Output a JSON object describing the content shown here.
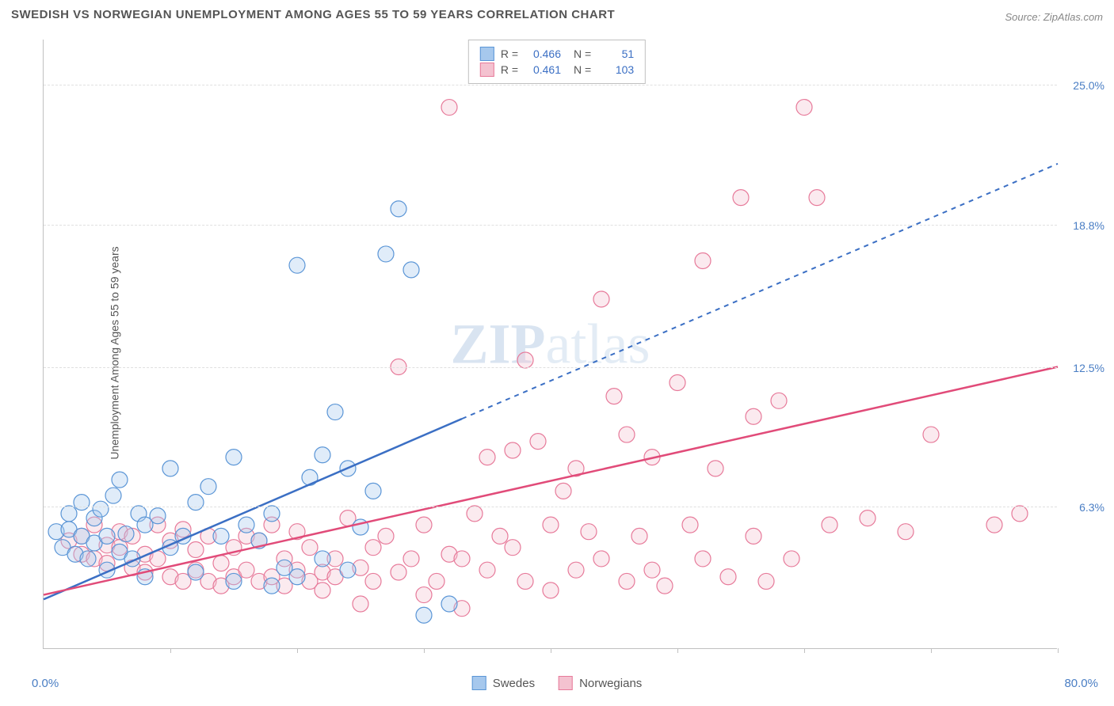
{
  "title": "SWEDISH VS NORWEGIAN UNEMPLOYMENT AMONG AGES 55 TO 59 YEARS CORRELATION CHART",
  "source": "Source: ZipAtlas.com",
  "watermark_bold": "ZIP",
  "watermark_light": "atlas",
  "y_axis_label": "Unemployment Among Ages 55 to 59 years",
  "chart": {
    "type": "scatter",
    "xlim": [
      0,
      80
    ],
    "ylim": [
      0,
      27
    ],
    "x_origin_label": "0.0%",
    "x_max_label": "80.0%",
    "x_ticks": [
      10,
      20,
      30,
      40,
      50,
      60,
      70,
      80
    ],
    "y_gridlines": [
      {
        "value": 6.3,
        "label": "6.3%"
      },
      {
        "value": 12.5,
        "label": "12.5%"
      },
      {
        "value": 18.8,
        "label": "18.8%"
      },
      {
        "value": 25.0,
        "label": "25.0%"
      }
    ],
    "background_color": "#ffffff",
    "grid_color": "#e0e0e0",
    "point_radius": 10,
    "series": [
      {
        "name": "Swedes",
        "fill": "#a6c8ed",
        "stroke": "#5a95d6",
        "line_color": "#3b6fc4",
        "R": "0.466",
        "N": "51",
        "trend_solid": {
          "x1": 0,
          "y1": 2.2,
          "x2": 33,
          "y2": 10.2
        },
        "trend_dashed": {
          "x1": 33,
          "y1": 10.2,
          "x2": 80,
          "y2": 21.5
        },
        "points": [
          [
            1,
            5.2
          ],
          [
            1.5,
            4.5
          ],
          [
            2,
            6.0
          ],
          [
            2,
            5.3
          ],
          [
            2.5,
            4.2
          ],
          [
            3,
            5.0
          ],
          [
            3,
            6.5
          ],
          [
            3.5,
            4.0
          ],
          [
            4,
            5.8
          ],
          [
            4,
            4.7
          ],
          [
            4.5,
            6.2
          ],
          [
            5,
            5.0
          ],
          [
            5,
            3.5
          ],
          [
            5.5,
            6.8
          ],
          [
            6,
            4.3
          ],
          [
            6,
            7.5
          ],
          [
            6.5,
            5.1
          ],
          [
            7,
            4.0
          ],
          [
            7.5,
            6.0
          ],
          [
            8,
            5.5
          ],
          [
            8,
            3.2
          ],
          [
            9,
            5.9
          ],
          [
            10,
            4.5
          ],
          [
            10,
            8.0
          ],
          [
            11,
            5.0
          ],
          [
            12,
            6.5
          ],
          [
            12,
            3.4
          ],
          [
            13,
            7.2
          ],
          [
            14,
            5.0
          ],
          [
            15,
            8.5
          ],
          [
            15,
            3.0
          ],
          [
            16,
            5.5
          ],
          [
            17,
            4.8
          ],
          [
            18,
            6.0
          ],
          [
            18,
            2.8
          ],
          [
            19,
            3.6
          ],
          [
            20,
            17.0
          ],
          [
            20,
            3.2
          ],
          [
            21,
            7.6
          ],
          [
            22,
            8.6
          ],
          [
            22,
            4.0
          ],
          [
            23,
            10.5
          ],
          [
            24,
            8.0
          ],
          [
            24,
            3.5
          ],
          [
            25,
            5.4
          ],
          [
            26,
            7.0
          ],
          [
            27,
            17.5
          ],
          [
            28,
            19.5
          ],
          [
            29,
            16.8
          ],
          [
            30,
            1.5
          ],
          [
            32,
            2.0
          ]
        ]
      },
      {
        "name": "Norwegians",
        "fill": "#f4c2d0",
        "stroke": "#e77a9a",
        "line_color": "#e14b79",
        "R": "0.461",
        "N": "103",
        "trend_solid": {
          "x1": 0,
          "y1": 2.4,
          "x2": 80,
          "y2": 12.5
        },
        "trend_dashed": null,
        "points": [
          [
            2,
            4.8
          ],
          [
            3,
            5.0
          ],
          [
            3,
            4.2
          ],
          [
            4,
            5.5
          ],
          [
            4,
            4.0
          ],
          [
            5,
            4.6
          ],
          [
            5,
            3.8
          ],
          [
            6,
            5.2
          ],
          [
            6,
            4.5
          ],
          [
            7,
            3.6
          ],
          [
            7,
            5.0
          ],
          [
            8,
            4.2
          ],
          [
            8,
            3.4
          ],
          [
            9,
            5.5
          ],
          [
            9,
            4.0
          ],
          [
            10,
            3.2
          ],
          [
            10,
            4.8
          ],
          [
            11,
            3.0
          ],
          [
            11,
            5.3
          ],
          [
            12,
            4.4
          ],
          [
            12,
            3.5
          ],
          [
            13,
            3.0
          ],
          [
            13,
            5.0
          ],
          [
            14,
            3.8
          ],
          [
            14,
            2.8
          ],
          [
            15,
            4.5
          ],
          [
            15,
            3.2
          ],
          [
            16,
            5.0
          ],
          [
            16,
            3.5
          ],
          [
            17,
            3.0
          ],
          [
            17,
            4.8
          ],
          [
            18,
            5.5
          ],
          [
            18,
            3.2
          ],
          [
            19,
            4.0
          ],
          [
            19,
            2.8
          ],
          [
            20,
            3.5
          ],
          [
            20,
            5.2
          ],
          [
            21,
            3.0
          ],
          [
            21,
            4.5
          ],
          [
            22,
            3.4
          ],
          [
            22,
            2.6
          ],
          [
            23,
            4.0
          ],
          [
            23,
            3.2
          ],
          [
            24,
            5.8
          ],
          [
            25,
            3.6
          ],
          [
            25,
            2.0
          ],
          [
            26,
            4.5
          ],
          [
            26,
            3.0
          ],
          [
            27,
            5.0
          ],
          [
            28,
            3.4
          ],
          [
            28,
            12.5
          ],
          [
            29,
            4.0
          ],
          [
            30,
            2.4
          ],
          [
            30,
            5.5
          ],
          [
            31,
            3.0
          ],
          [
            32,
            4.2
          ],
          [
            32,
            24.0
          ],
          [
            33,
            4.0
          ],
          [
            33,
            1.8
          ],
          [
            34,
            6.0
          ],
          [
            35,
            3.5
          ],
          [
            35,
            8.5
          ],
          [
            36,
            5.0
          ],
          [
            37,
            4.5
          ],
          [
            37,
            8.8
          ],
          [
            38,
            3.0
          ],
          [
            38,
            12.8
          ],
          [
            39,
            9.2
          ],
          [
            40,
            5.5
          ],
          [
            40,
            2.6
          ],
          [
            41,
            7.0
          ],
          [
            42,
            3.5
          ],
          [
            42,
            8.0
          ],
          [
            43,
            5.2
          ],
          [
            44,
            4.0
          ],
          [
            44,
            15.5
          ],
          [
            45,
            11.2
          ],
          [
            46,
            3.0
          ],
          [
            46,
            9.5
          ],
          [
            47,
            5.0
          ],
          [
            48,
            3.5
          ],
          [
            48,
            8.5
          ],
          [
            49,
            2.8
          ],
          [
            50,
            11.8
          ],
          [
            51,
            5.5
          ],
          [
            52,
            17.2
          ],
          [
            52,
            4.0
          ],
          [
            53,
            8.0
          ],
          [
            54,
            3.2
          ],
          [
            55,
            20.0
          ],
          [
            56,
            10.3
          ],
          [
            56,
            5.0
          ],
          [
            57,
            3.0
          ],
          [
            58,
            11.0
          ],
          [
            59,
            4.0
          ],
          [
            60,
            24.0
          ],
          [
            61,
            20.0
          ],
          [
            62,
            5.5
          ],
          [
            65,
            5.8
          ],
          [
            68,
            5.2
          ],
          [
            70,
            9.5
          ],
          [
            75,
            5.5
          ],
          [
            77,
            6.0
          ]
        ]
      }
    ]
  },
  "legend_bottom": [
    "Swedes",
    "Norwegians"
  ]
}
